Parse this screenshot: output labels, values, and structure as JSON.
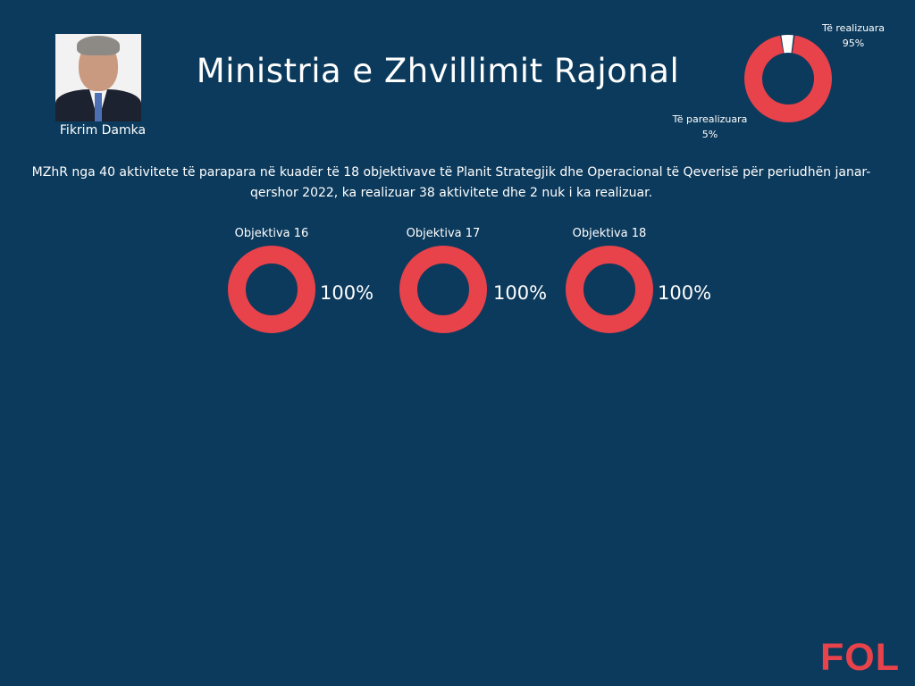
{
  "header": {
    "title": "Ministria e Zhvillimit Rajonal",
    "person_name": "Fikrim Damka"
  },
  "summary": {
    "text": "MZhR nga 40 aktivitete të parapara në kuadër të 18 objektivave të Planit Strategjik dhe Operacional të Qeverisë për periudhën janar-qershor 2022, ka realizuar 38 aktivitete dhe 2 nuk i ka realizuar."
  },
  "colors": {
    "background": "#0c3a5c",
    "accent": "#e8424b",
    "remainder": "#ffffff"
  },
  "chart_data": [
    {
      "type": "pie",
      "title": "",
      "labels": [
        "Të realizuara",
        "Të parealizuara"
      ],
      "values": [
        95,
        5
      ],
      "value_labels": [
        "95%",
        "5%"
      ],
      "colors": [
        "#e8424b",
        "#ffffff"
      ]
    },
    {
      "type": "pie",
      "title": "Objektiva 16",
      "labels": [
        "Objektiva 16"
      ],
      "values": [
        100
      ],
      "value_labels": [
        "100%"
      ],
      "colors": [
        "#e8424b"
      ]
    },
    {
      "type": "pie",
      "title": "Objektiva 17",
      "labels": [
        "Objektiva 17"
      ],
      "values": [
        100
      ],
      "value_labels": [
        "100%"
      ],
      "colors": [
        "#e8424b"
      ]
    },
    {
      "type": "pie",
      "title": "Objektiva 18",
      "labels": [
        "Objektiva 18"
      ],
      "values": [
        100
      ],
      "value_labels": [
        "100%"
      ],
      "colors": [
        "#e8424b"
      ]
    }
  ],
  "logo": {
    "text": "FOL"
  }
}
